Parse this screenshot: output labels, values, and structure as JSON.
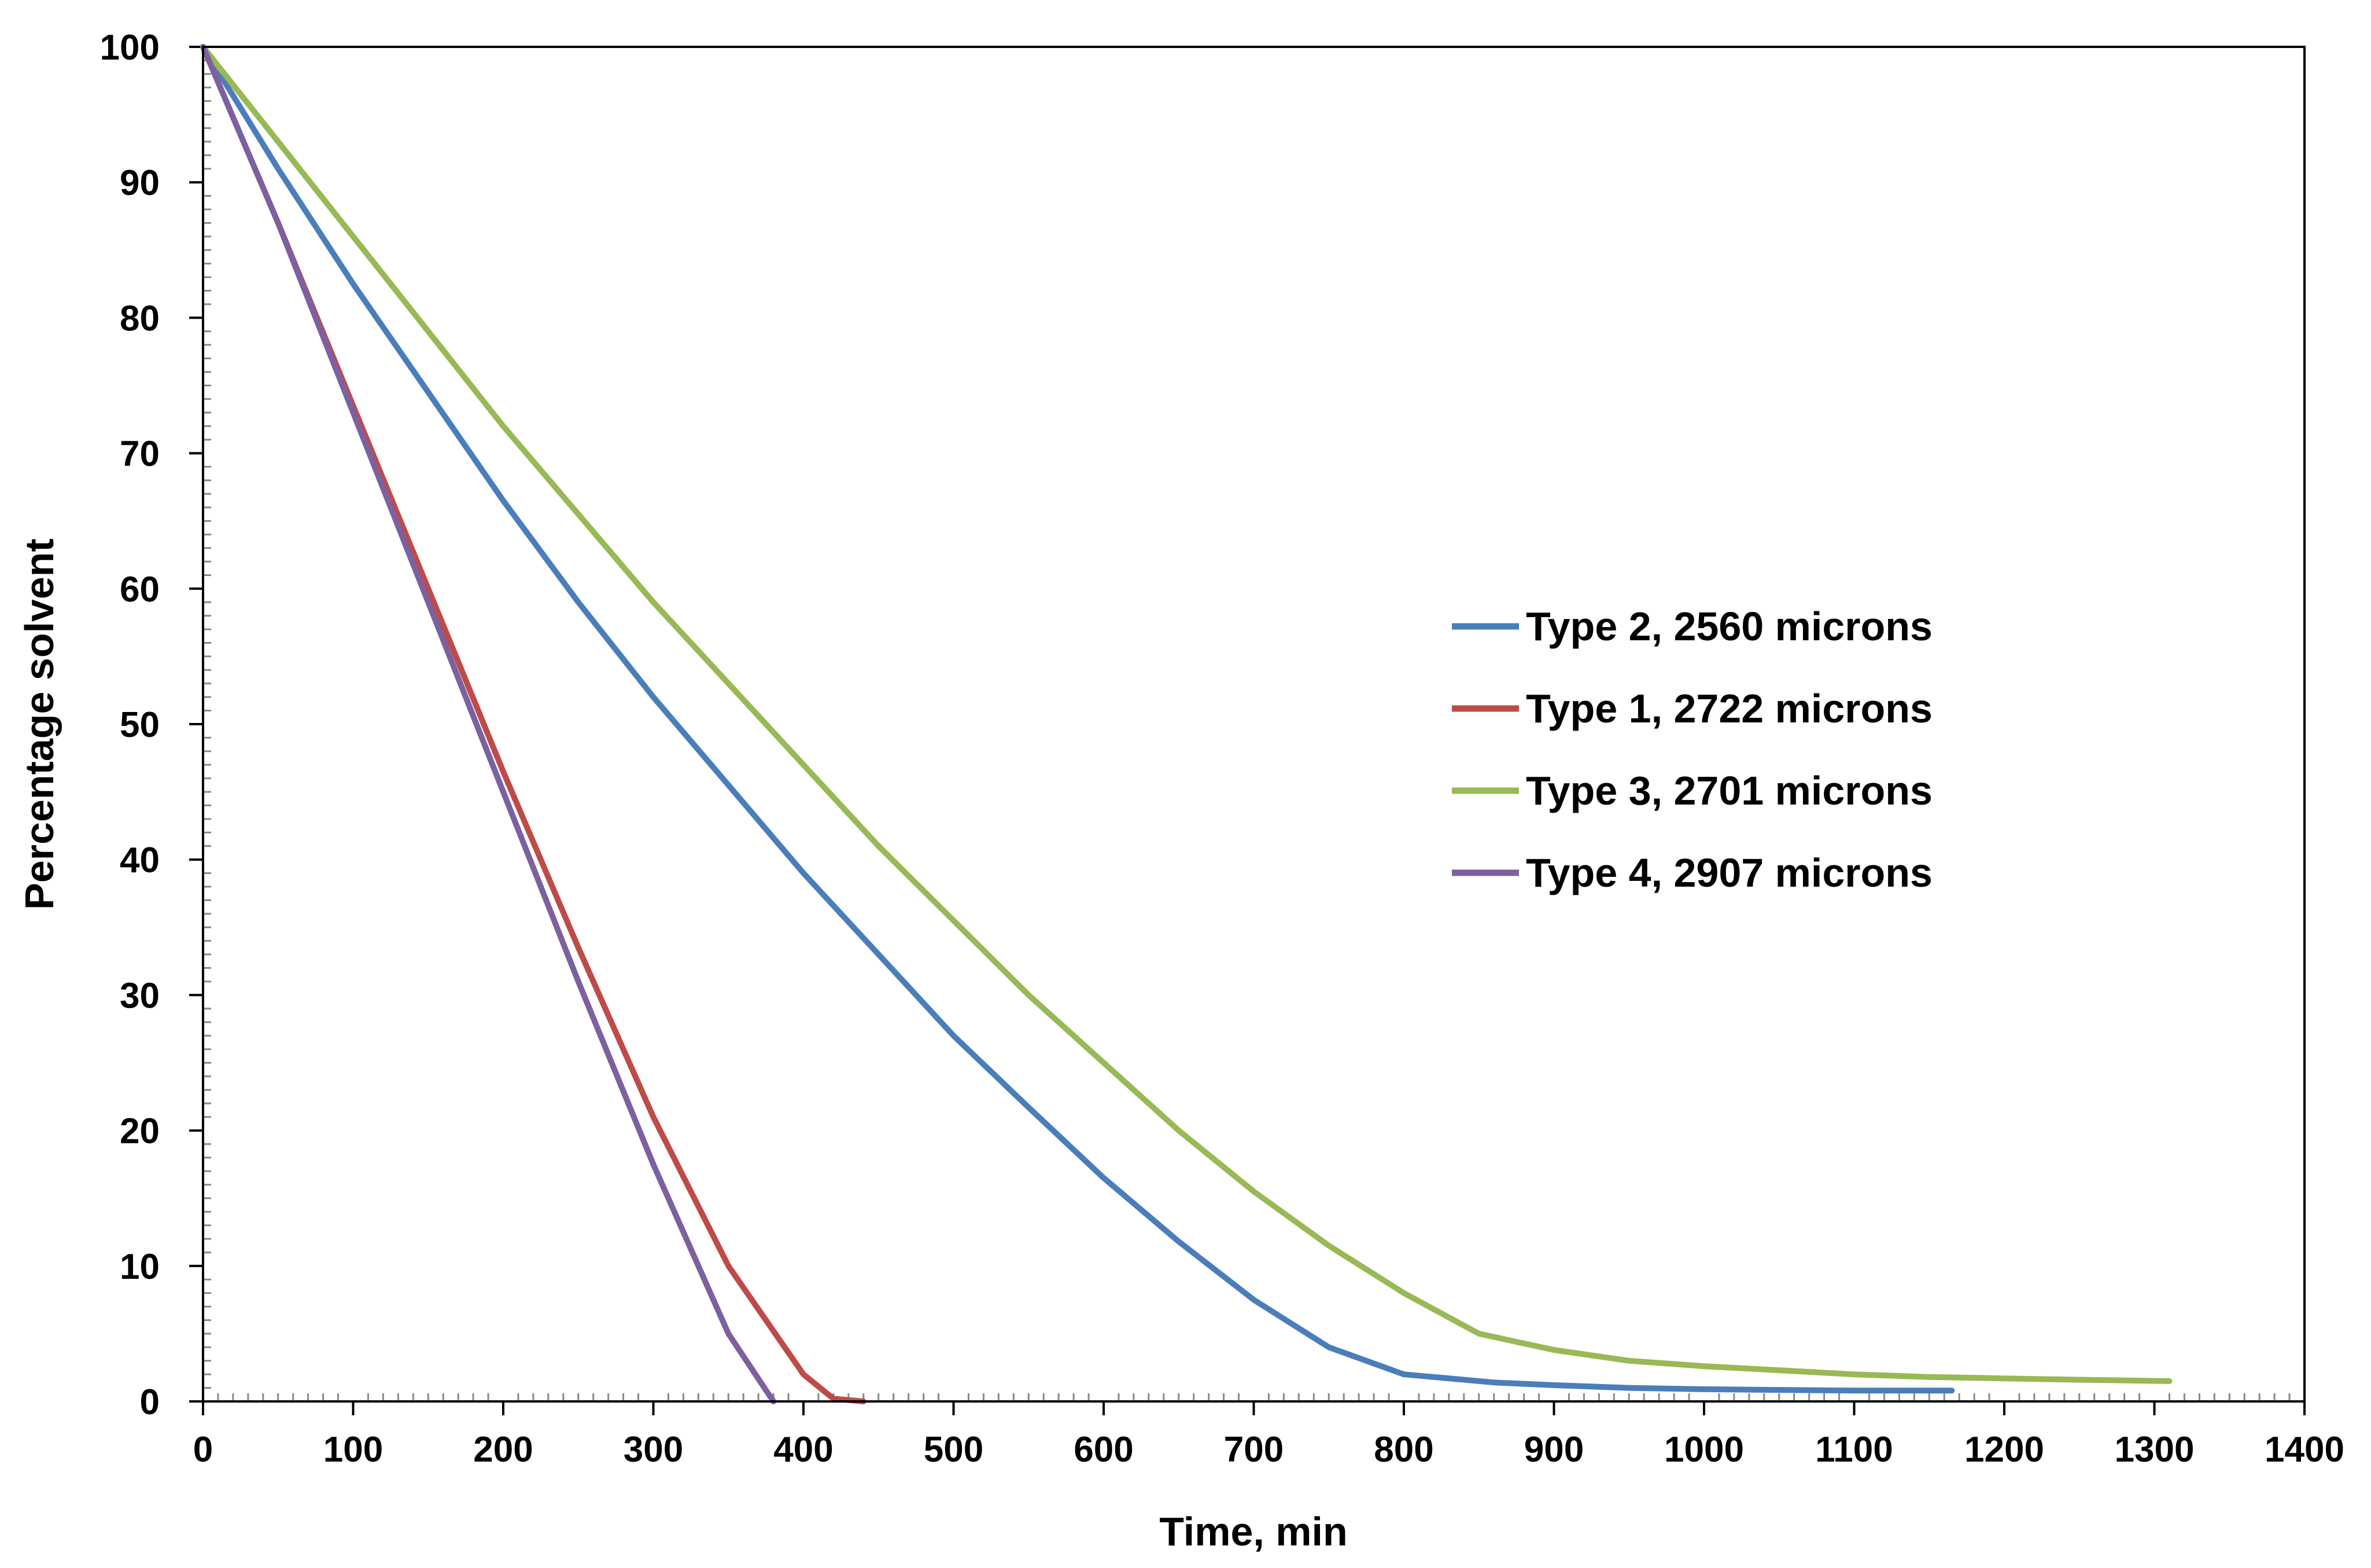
{
  "chart_data": {
    "type": "line",
    "title": "",
    "xlabel": "Time, min",
    "ylabel": "Percentage solvent",
    "xlim": [
      0,
      1400
    ],
    "ylim": [
      0,
      100
    ],
    "x_ticks": [
      "0",
      "100",
      "200",
      "300",
      "400",
      "500",
      "600",
      "700",
      "800",
      "900",
      "1000",
      "1100",
      "1200",
      "1300",
      "1400"
    ],
    "y_ticks": [
      "0",
      "10",
      "20",
      "30",
      "40",
      "50",
      "60",
      "70",
      "80",
      "90",
      "100"
    ],
    "grid": false,
    "legend_position": "center-right",
    "series": [
      {
        "name": "Type 2, 2560 microns",
        "color": "#4a7ebb",
        "x": [
          0,
          50,
          100,
          150,
          200,
          250,
          300,
          350,
          400,
          450,
          500,
          550,
          600,
          650,
          700,
          750,
          800,
          840,
          860,
          900,
          950,
          1000,
          1050,
          1100,
          1165
        ],
        "y": [
          100,
          91,
          82.5,
          74.5,
          66.5,
          59,
          52,
          45.5,
          39,
          33,
          27,
          21.7,
          16.5,
          11.8,
          7.5,
          4,
          2,
          1.6,
          1.4,
          1.2,
          1.0,
          0.9,
          0.85,
          0.8,
          0.8
        ]
      },
      {
        "name": "Type 1, 2722 microns",
        "color": "#be4b48",
        "x": [
          0,
          50,
          100,
          150,
          200,
          250,
          300,
          350,
          400,
          420,
          440
        ],
        "y": [
          100,
          87,
          73.5,
          60,
          46.5,
          33.5,
          21,
          10,
          2,
          0.2,
          0
        ]
      },
      {
        "name": "Type 3, 2701 microns",
        "color": "#98b954",
        "x": [
          0,
          50,
          100,
          150,
          200,
          250,
          300,
          350,
          400,
          450,
          500,
          550,
          600,
          650,
          700,
          750,
          800,
          850,
          900,
          950,
          1000,
          1050,
          1100,
          1150,
          1200,
          1250,
          1310
        ],
        "y": [
          100,
          93,
          86,
          79,
          72,
          65.5,
          59,
          53,
          47,
          41,
          35.5,
          30,
          25,
          20,
          15.5,
          11.5,
          8,
          5,
          3.8,
          3.0,
          2.6,
          2.3,
          2.0,
          1.8,
          1.7,
          1.6,
          1.5
        ]
      },
      {
        "name": "Type 4, 2907 microns",
        "color": "#7d60a0",
        "x": [
          0,
          50,
          100,
          150,
          200,
          250,
          300,
          350,
          380
        ],
        "y": [
          100,
          87,
          73,
          59,
          45,
          31,
          17.5,
          5,
          0
        ]
      }
    ]
  }
}
